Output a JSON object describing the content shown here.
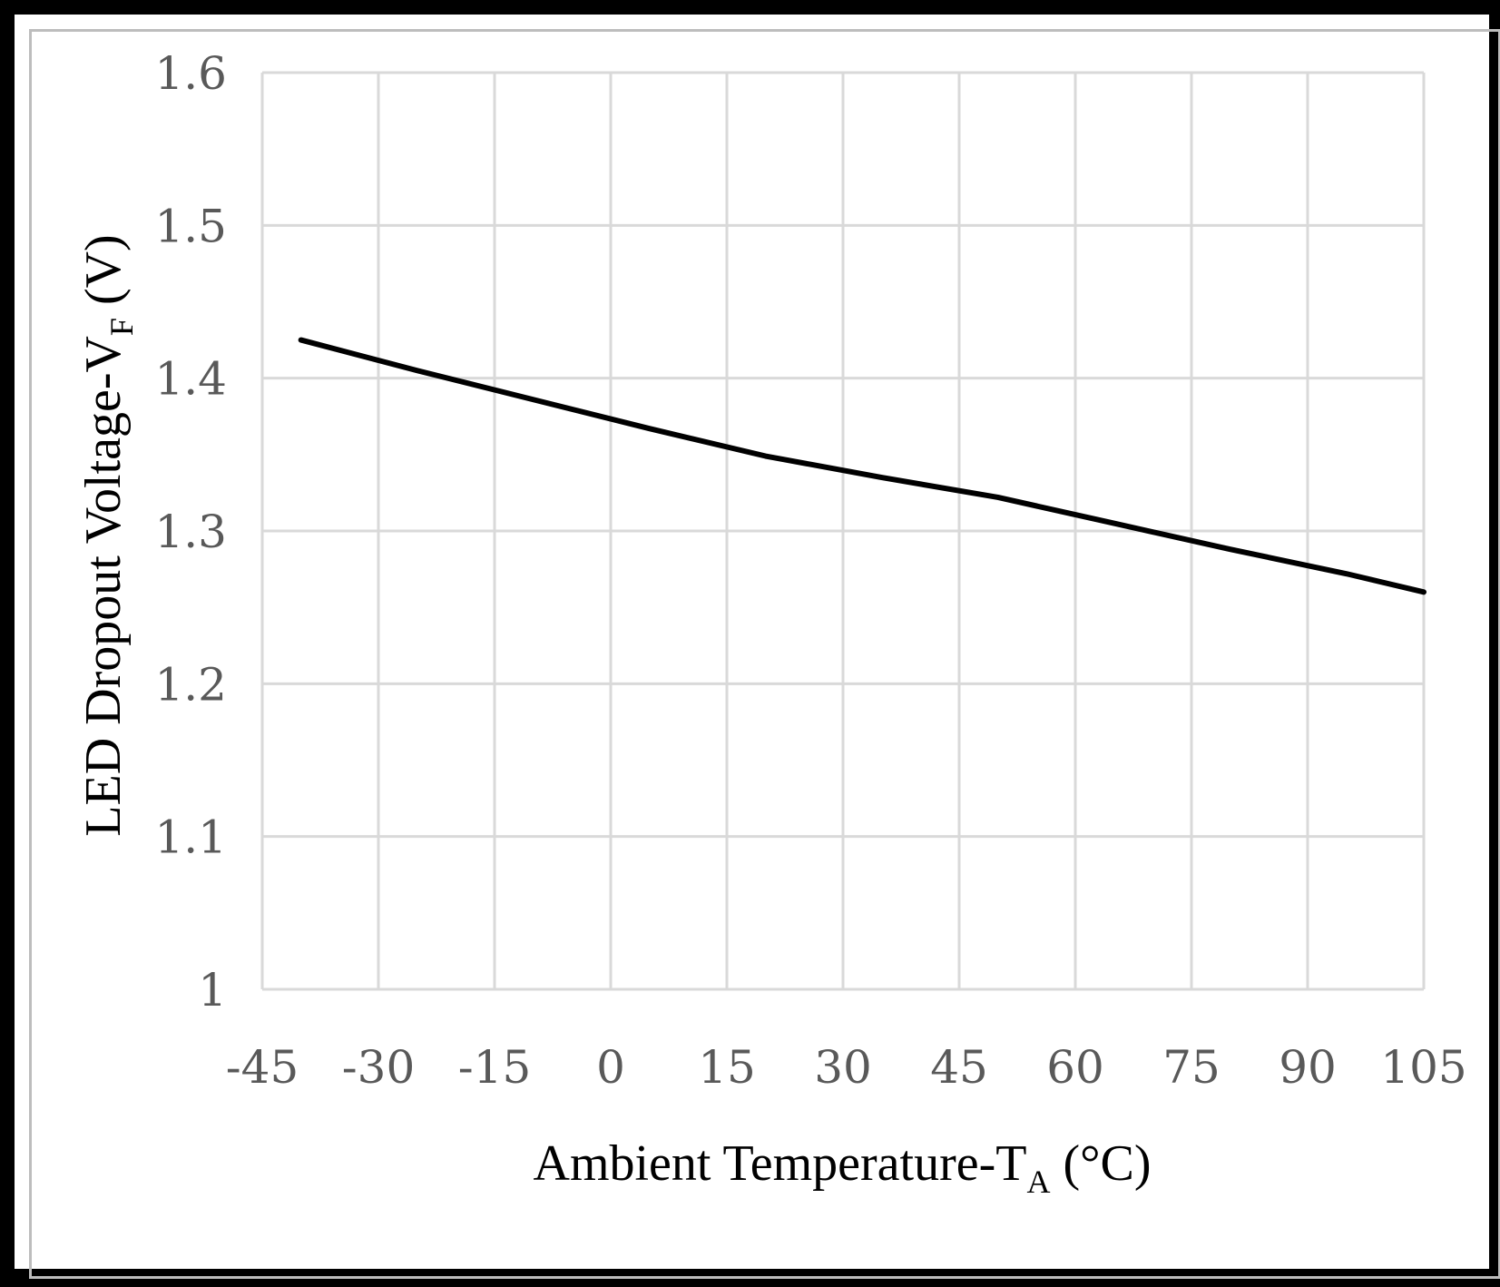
{
  "chart_data": {
    "type": "line",
    "title": "",
    "xlabel": {
      "main": "Ambient Temperature-T",
      "sub": "A",
      "suffix": " (°C)"
    },
    "ylabel": {
      "main": "LED Dropout Voltage-V",
      "sub": "F",
      "suffix": " (V)"
    },
    "xlim": [
      -45,
      105
    ],
    "ylim": [
      1.0,
      1.6
    ],
    "xticks": [
      -45,
      -30,
      -15,
      0,
      15,
      30,
      45,
      60,
      75,
      90,
      105
    ],
    "xtick_labels": [
      "-45",
      "-30",
      "-15",
      "0",
      "15",
      "30",
      "45",
      "60",
      "75",
      "90",
      "105"
    ],
    "yticks": [
      1.0,
      1.1,
      1.2,
      1.3,
      1.4,
      1.5,
      1.6
    ],
    "ytick_labels": [
      "1",
      "1.1",
      "1.2",
      "1.3",
      "1.4",
      "1.5",
      "1.6"
    ],
    "grid": true,
    "series": [
      {
        "name": "VF",
        "x": [
          -40,
          -25,
          -10,
          5,
          20,
          35,
          50,
          65,
          80,
          95,
          105
        ],
        "y": [
          1.425,
          1.405,
          1.386,
          1.367,
          1.349,
          1.335,
          1.322,
          1.305,
          1.288,
          1.272,
          1.26
        ]
      }
    ]
  },
  "colors": {
    "grid": "#d9d9d9",
    "line": "#000000",
    "tick_text": "#595959",
    "axis_title": "#000000",
    "frame": "#000000"
  }
}
